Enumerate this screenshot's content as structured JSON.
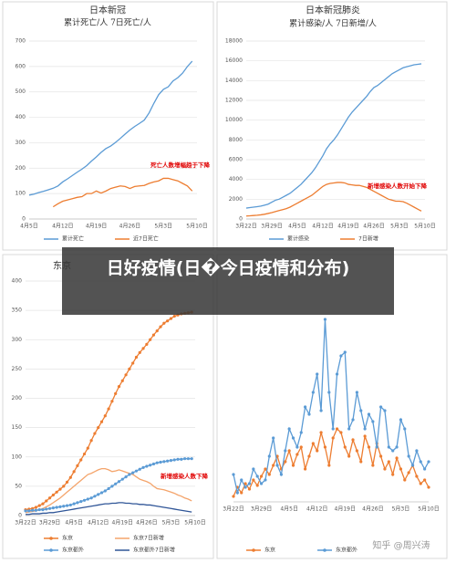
{
  "chart_data": [
    {
      "type": "line",
      "title": "日本新冠",
      "subtitle": "累计死亡/人  7日死亡/人",
      "categories": [
        "4月5日",
        null,
        null,
        null,
        null,
        null,
        null,
        "4月12日",
        null,
        null,
        null,
        null,
        null,
        null,
        "4月19日",
        null,
        null,
        null,
        null,
        null,
        null,
        "4月26日",
        null,
        null,
        null,
        null,
        null,
        null,
        "5月3日",
        null,
        null,
        null,
        null,
        null,
        null,
        "5月10日"
      ],
      "series": [
        {
          "name": "累计死亡",
          "color": "#5b9bd5",
          "marker": false,
          "values": [
            94,
            98,
            104,
            109,
            115,
            121,
            130,
            146,
            158,
            171,
            184,
            196,
            210,
            228,
            244,
            262,
            277,
            287,
            301,
            317,
            334,
            350,
            364,
            376,
            389,
            417,
            455,
            489,
            510,
            520,
            543,
            556,
            574,
            600,
            621,
            null
          ]
        },
        {
          "name": "近7日死亡",
          "color": "#ed7d31",
          "marker": false,
          "values": [
            null,
            null,
            null,
            null,
            null,
            48,
            60,
            70,
            75,
            80,
            85,
            88,
            100,
            100,
            110,
            102,
            110,
            120,
            125,
            130,
            128,
            120,
            128,
            130,
            132,
            140,
            146,
            150,
            160,
            160,
            155,
            150,
            140,
            130,
            110,
            null
          ]
        }
      ],
      "ylim": [
        0,
        700
      ],
      "yticks": [
        0,
        100,
        200,
        300,
        400,
        500,
        600,
        700
      ],
      "grid": true,
      "legend": "bottom",
      "annotation": {
        "text": "死亡人数增幅趋于下降",
        "color": "#e00000"
      }
    },
    {
      "type": "line",
      "title": "日本新冠肺炎",
      "subtitle": "累计感染/人  7日新增/人",
      "categories": [
        "3月22日",
        null,
        null,
        null,
        null,
        null,
        null,
        "3月29日",
        null,
        null,
        null,
        null,
        null,
        null,
        "4月5日",
        null,
        null,
        null,
        null,
        null,
        null,
        "4月12日",
        null,
        null,
        null,
        null,
        null,
        null,
        "4月19日",
        null,
        null,
        null,
        null,
        null,
        null,
        "4月26日",
        null,
        null,
        null,
        null,
        null,
        null,
        "5月3日",
        null,
        null,
        null,
        null,
        null,
        null,
        "5月10日"
      ],
      "series": [
        {
          "name": "累计感染",
          "color": "#5b9bd5",
          "marker": false,
          "values": [
            1100,
            1150,
            1200,
            1250,
            1300,
            1400,
            1500,
            1700,
            1900,
            2000,
            2200,
            2400,
            2600,
            2900,
            3200,
            3500,
            3900,
            4300,
            4700,
            5200,
            5800,
            6400,
            7100,
            7600,
            8000,
            8500,
            9100,
            9700,
            10300,
            10800,
            11200,
            11600,
            12000,
            12400,
            12900,
            13300,
            13500,
            13800,
            14100,
            14400,
            14700,
            14900,
            15100,
            15300,
            15400,
            15500,
            15600,
            15650,
            15700,
            null
          ]
        },
        {
          "name": "7日新增",
          "color": "#ed7d31",
          "marker": false,
          "values": [
            300,
            320,
            350,
            380,
            420,
            480,
            560,
            650,
            750,
            850,
            950,
            1050,
            1200,
            1400,
            1600,
            1800,
            2000,
            2200,
            2400,
            2700,
            3000,
            3300,
            3500,
            3600,
            3650,
            3700,
            3700,
            3650,
            3500,
            3450,
            3400,
            3400,
            3300,
            3200,
            3000,
            2800,
            2600,
            2400,
            2200,
            2000,
            1900,
            1800,
            1800,
            1750,
            1600,
            1400,
            1200,
            1000,
            800,
            null
          ]
        }
      ],
      "ylim": [
        0,
        18000
      ],
      "yticks": [
        0,
        2000,
        4000,
        6000,
        8000,
        10000,
        12000,
        14000,
        16000,
        18000
      ],
      "grid": true,
      "legend": "bottom",
      "annotation": {
        "text": "新增感染人数开始下降",
        "color": "#e00000"
      }
    },
    {
      "type": "line",
      "title": "东京",
      "categories": [
        "3月22日",
        null,
        null,
        null,
        null,
        null,
        null,
        "3月29日",
        null,
        null,
        null,
        null,
        null,
        null,
        "4月5日",
        null,
        null,
        null,
        null,
        null,
        null,
        "4月12日",
        null,
        null,
        null,
        null,
        null,
        null,
        "4月19日",
        null,
        null,
        null,
        null,
        null,
        null,
        "4月26日",
        null,
        null,
        null,
        null,
        null,
        null,
        "5月3日",
        null,
        null,
        null,
        null,
        null,
        null,
        "5月10日"
      ],
      "series": [
        {
          "name": "东京",
          "color": "#ed7d31",
          "marker": true,
          "values": [
            10,
            11,
            12,
            14,
            17,
            20,
            25,
            30,
            35,
            40,
            45,
            50,
            57,
            65,
            75,
            85,
            95,
            105,
            115,
            128,
            140,
            150,
            160,
            170,
            182,
            195,
            208,
            220,
            230,
            240,
            250,
            260,
            270,
            278,
            285,
            292,
            300,
            308,
            315,
            322,
            328,
            332,
            336,
            340,
            342,
            344,
            345,
            346,
            347,
            null
          ]
        },
        {
          "name": "东京7日新增",
          "color": "#f4a46b",
          "marker": false,
          "values": [
            5,
            6,
            7,
            8,
            10,
            12,
            15,
            18,
            22,
            26,
            30,
            35,
            40,
            45,
            50,
            55,
            60,
            65,
            70,
            72,
            75,
            78,
            80,
            80,
            78,
            75,
            76,
            78,
            76,
            74,
            72,
            70,
            66,
            62,
            60,
            58,
            55,
            50,
            46,
            45,
            44,
            42,
            40,
            38,
            35,
            33,
            30,
            28,
            25,
            null
          ]
        },
        {
          "name": "东京都外",
          "color": "#5b9bd5",
          "marker": true,
          "values": [
            8,
            8,
            9,
            9,
            10,
            10,
            11,
            12,
            13,
            14,
            15,
            16,
            17,
            18,
            20,
            22,
            24,
            26,
            28,
            30,
            33,
            36,
            39,
            42,
            46,
            50,
            54,
            58,
            62,
            66,
            70,
            73,
            76,
            79,
            82,
            84,
            86,
            88,
            90,
            91,
            92,
            93,
            94,
            95,
            96,
            96,
            97,
            97,
            97,
            null
          ]
        },
        {
          "name": "东京都外7日新增",
          "color": "#2f5597",
          "marker": false,
          "values": [
            2,
            2,
            3,
            3,
            3,
            4,
            4,
            5,
            5,
            6,
            7,
            8,
            9,
            10,
            11,
            12,
            13,
            14,
            15,
            16,
            17,
            18,
            19,
            20,
            20,
            21,
            21,
            22,
            22,
            21,
            21,
            20,
            20,
            19,
            19,
            18,
            18,
            17,
            16,
            15,
            14,
            13,
            12,
            11,
            10,
            9,
            8,
            7,
            6,
            null
          ]
        }
      ],
      "ylim": [
        0,
        400
      ],
      "yticks": [
        0,
        50,
        100,
        150,
        200,
        250,
        300,
        350,
        400
      ],
      "grid": true,
      "legend": "bottom",
      "annotation": {
        "text": "新增感染人数下降",
        "color": "#e00000"
      }
    },
    {
      "type": "line",
      "categories": [
        "3月22日",
        null,
        null,
        null,
        null,
        null,
        null,
        "3月29日",
        null,
        null,
        null,
        null,
        null,
        null,
        "4月5日",
        null,
        null,
        null,
        null,
        null,
        null,
        "4月12日",
        null,
        null,
        null,
        null,
        null,
        null,
        "4月19日",
        null,
        null,
        null,
        null,
        null,
        null,
        "4月26日",
        null,
        null,
        null,
        null,
        null,
        null,
        "5月3日",
        null,
        null,
        null,
        null,
        null,
        null,
        "5月10日"
      ],
      "series": [
        {
          "name": "东京",
          "color": "#ed7d31",
          "marker": true,
          "values": [
            3,
            8,
            5,
            10,
            7,
            12,
            9,
            14,
            18,
            15,
            20,
            25,
            18,
            22,
            28,
            20,
            26,
            30,
            18,
            25,
            32,
            28,
            38,
            30,
            20,
            35,
            40,
            38,
            30,
            25,
            34,
            28,
            22,
            36,
            30,
            20,
            32,
            25,
            18,
            22,
            15,
            24,
            18,
            12,
            16,
            20,
            14,
            10,
            12,
            8
          ]
        },
        {
          "name": "东京都外",
          "color": "#5b9bd5",
          "marker": true,
          "values": [
            15,
            5,
            12,
            8,
            10,
            18,
            14,
            10,
            12,
            25,
            35,
            20,
            15,
            28,
            40,
            35,
            30,
            38,
            52,
            48,
            60,
            70,
            50,
            100,
            60,
            40,
            70,
            80,
            82,
            40,
            45,
            60,
            50,
            40,
            48,
            44,
            30,
            52,
            50,
            30,
            28,
            30,
            45,
            40,
            25,
            20,
            28,
            22,
            18,
            22
          ]
        }
      ],
      "ylim": [
        0,
        110
      ],
      "grid": false,
      "legend": "bottom"
    }
  ],
  "banner_text": "日好疫情(日�今日疫情和分布)",
  "watermark": "知乎 @周兴涛"
}
